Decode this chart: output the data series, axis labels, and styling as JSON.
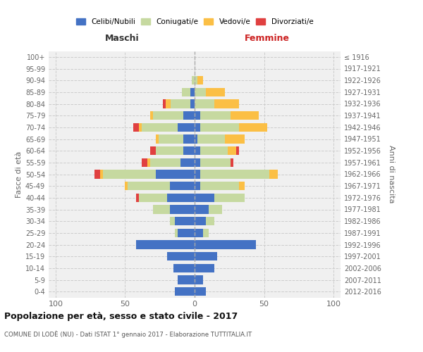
{
  "age_groups": [
    "0-4",
    "5-9",
    "10-14",
    "15-19",
    "20-24",
    "25-29",
    "30-34",
    "35-39",
    "40-44",
    "45-49",
    "50-54",
    "55-59",
    "60-64",
    "65-69",
    "70-74",
    "75-79",
    "80-84",
    "85-89",
    "90-94",
    "95-99",
    "100+"
  ],
  "birth_years": [
    "2012-2016",
    "2007-2011",
    "2002-2006",
    "1997-2001",
    "1992-1996",
    "1987-1991",
    "1982-1986",
    "1977-1981",
    "1972-1976",
    "1967-1971",
    "1962-1966",
    "1957-1961",
    "1952-1956",
    "1947-1951",
    "1942-1946",
    "1937-1941",
    "1932-1936",
    "1927-1931",
    "1922-1926",
    "1917-1921",
    "≤ 1916"
  ],
  "maschi": {
    "celibi": [
      14,
      12,
      15,
      20,
      42,
      12,
      14,
      18,
      20,
      18,
      28,
      10,
      8,
      8,
      12,
      8,
      3,
      3,
      0,
      0,
      0
    ],
    "coniugati": [
      0,
      0,
      0,
      0,
      0,
      2,
      4,
      12,
      20,
      30,
      38,
      22,
      20,
      18,
      26,
      22,
      14,
      6,
      2,
      0,
      0
    ],
    "vedovi": [
      0,
      0,
      0,
      0,
      0,
      0,
      0,
      0,
      0,
      2,
      2,
      2,
      0,
      2,
      2,
      2,
      4,
      0,
      0,
      0,
      0
    ],
    "divorziati": [
      0,
      0,
      0,
      0,
      0,
      0,
      0,
      0,
      2,
      0,
      4,
      4,
      4,
      0,
      4,
      0,
      2,
      0,
      0,
      0,
      0
    ]
  },
  "femmine": {
    "nubili": [
      8,
      6,
      14,
      16,
      44,
      6,
      8,
      10,
      14,
      4,
      4,
      4,
      4,
      2,
      4,
      4,
      0,
      0,
      0,
      0,
      0
    ],
    "coniugate": [
      0,
      0,
      0,
      0,
      0,
      4,
      6,
      10,
      22,
      28,
      50,
      22,
      20,
      20,
      28,
      22,
      14,
      8,
      2,
      0,
      0
    ],
    "vedove": [
      0,
      0,
      0,
      0,
      0,
      0,
      0,
      0,
      0,
      4,
      6,
      0,
      6,
      14,
      20,
      20,
      18,
      14,
      4,
      0,
      0
    ],
    "divorziate": [
      0,
      0,
      0,
      0,
      0,
      0,
      0,
      0,
      0,
      0,
      0,
      2,
      2,
      0,
      0,
      0,
      0,
      0,
      0,
      0,
      0
    ]
  },
  "color_celibi": "#4472c4",
  "color_coniugati": "#c6d9a0",
  "color_vedovi": "#fbbf45",
  "color_divorziati": "#e04040",
  "xlim": 105,
  "title": "Popolazione per età, sesso e stato civile - 2017",
  "subtitle": "COMUNE DI LODÈ (NU) - Dati ISTAT 1° gennaio 2017 - Elaborazione TUTTITALIA.IT",
  "ylabel_left": "Fasce di età",
  "ylabel_right": "Anni di nascita",
  "xlabel_left": "Maschi",
  "xlabel_right": "Femmine"
}
